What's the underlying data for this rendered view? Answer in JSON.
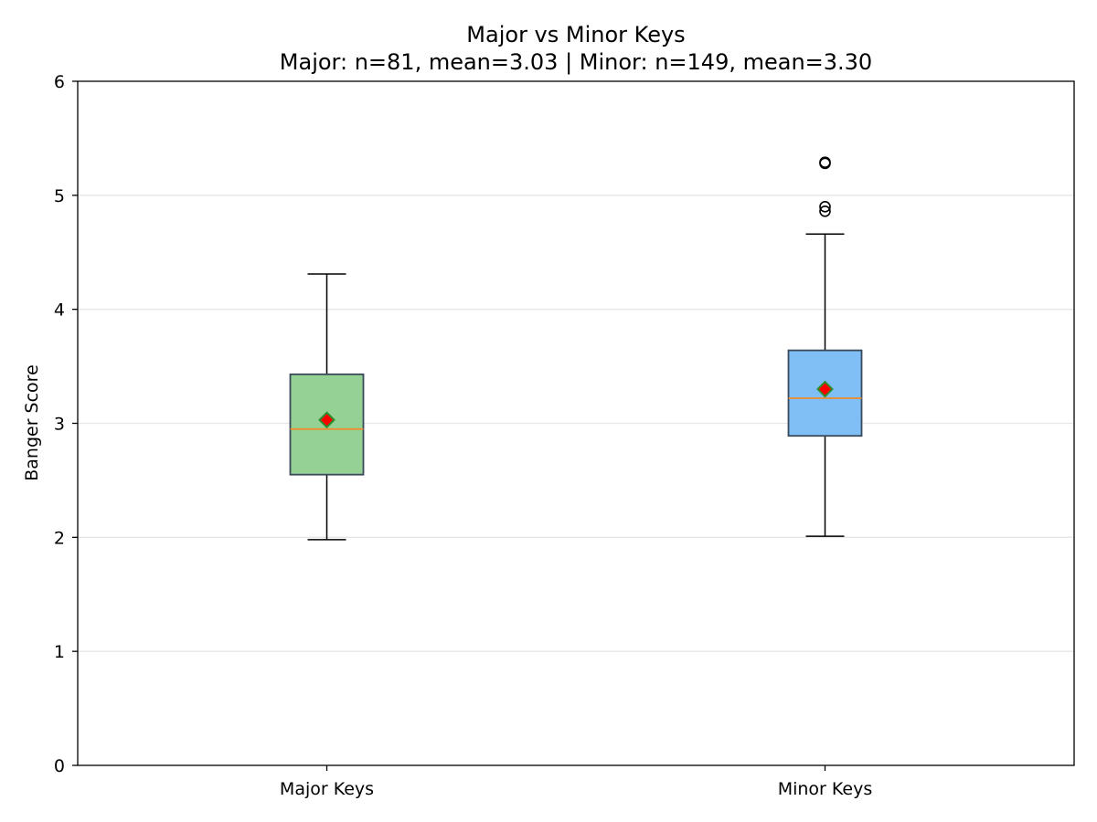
{
  "chart_data": {
    "type": "box",
    "title": "Major vs Minor Keys",
    "subtitle": "Major: n=81, mean=3.03 | Minor: n=149, mean=3.30",
    "xlabel": "",
    "ylabel": "Banger Score",
    "ylim": [
      0,
      6
    ],
    "yticks": [
      0,
      1,
      2,
      3,
      4,
      5,
      6
    ],
    "grid": "y",
    "categories": [
      "Major Keys",
      "Minor Keys"
    ],
    "series": [
      {
        "category": "Major Keys",
        "n": 81,
        "mean": 3.03,
        "whisker_low": 1.98,
        "q1": 2.55,
        "median": 2.95,
        "q3": 3.43,
        "whisker_high": 4.31,
        "outliers": [],
        "color": "#95d095"
      },
      {
        "category": "Minor Keys",
        "n": 149,
        "mean": 3.3,
        "whisker_low": 2.01,
        "q1": 2.89,
        "median": 3.22,
        "q3": 3.64,
        "whisker_high": 4.66,
        "outliers": [
          4.86,
          4.9,
          5.28,
          5.29
        ],
        "color": "#7fbff5"
      }
    ],
    "colors": {
      "median_line": "#f08a2a",
      "mean_marker_fill": "#ff0000",
      "mean_marker_edge": "#2f8f2f",
      "box_edge": "#3a4a5a",
      "grid": "#e6e6e6"
    }
  }
}
